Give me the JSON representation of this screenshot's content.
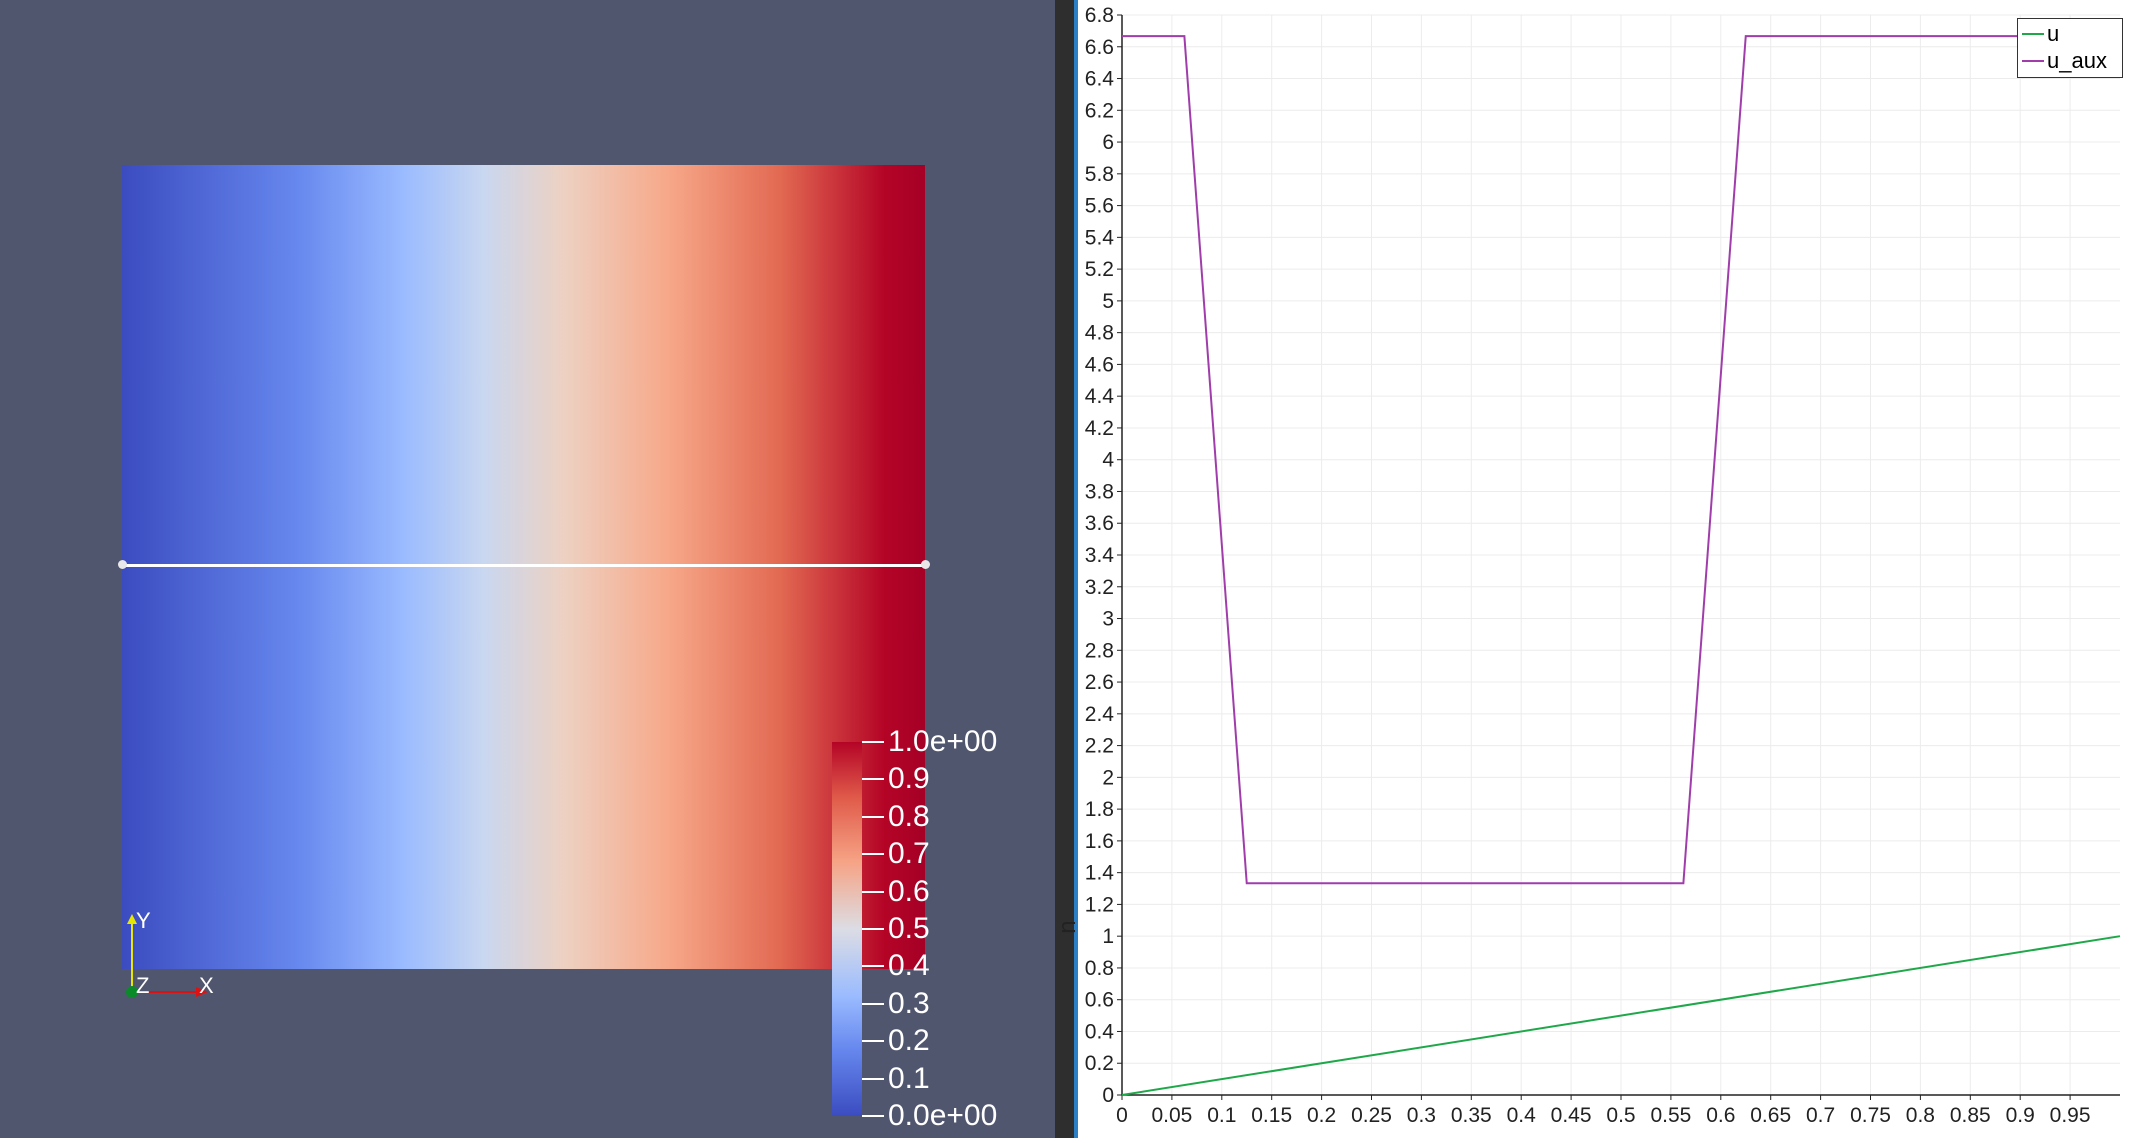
{
  "render_view": {
    "colorbar": {
      "labels": [
        "1.0e+00",
        "0.9",
        "0.8",
        "0.7",
        "0.6",
        "0.5",
        "0.4",
        "0.3",
        "0.2",
        "0.1",
        "0.0e+00"
      ]
    },
    "orientation_axes": {
      "y": "Y",
      "x": "X",
      "z": "Z"
    }
  },
  "chart_view": {
    "ylabel": "u"
  },
  "chart_data": {
    "type": "line",
    "xlabel": "",
    "ylabel": "u",
    "xlim": [
      0,
      1
    ],
    "ylim": [
      0,
      6.8
    ],
    "x_ticks": [
      "0",
      "0.05",
      "0.1",
      "0.15",
      "0.2",
      "0.25",
      "0.3",
      "0.35",
      "0.4",
      "0.45",
      "0.5",
      "0.55",
      "0.6",
      "0.65",
      "0.7",
      "0.75",
      "0.8",
      "0.85",
      "0.9",
      "0.95"
    ],
    "y_ticks": [
      "0",
      "0.2",
      "0.4",
      "0.6",
      "0.8",
      "1",
      "1.2",
      "1.4",
      "1.6",
      "1.8",
      "2",
      "2.2",
      "2.4",
      "2.6",
      "2.8",
      "3",
      "3.2",
      "3.4",
      "3.6",
      "3.8",
      "4",
      "4.2",
      "4.4",
      "4.6",
      "4.8",
      "5",
      "5.2",
      "5.4",
      "5.6",
      "5.8",
      "6",
      "6.2",
      "6.4",
      "6.6",
      "6.8"
    ],
    "grid": true,
    "legend_position": "top-right",
    "series": [
      {
        "name": "u",
        "color": "#1fa84a",
        "x": [
          0,
          1
        ],
        "y": [
          0,
          1
        ]
      },
      {
        "name": "u_aux",
        "color": "#a03dab",
        "x": [
          0,
          0.0625,
          0.125,
          0.5625,
          0.625,
          1
        ],
        "y": [
          6.667,
          6.667,
          1.333,
          1.333,
          6.667,
          6.667
        ]
      }
    ]
  }
}
